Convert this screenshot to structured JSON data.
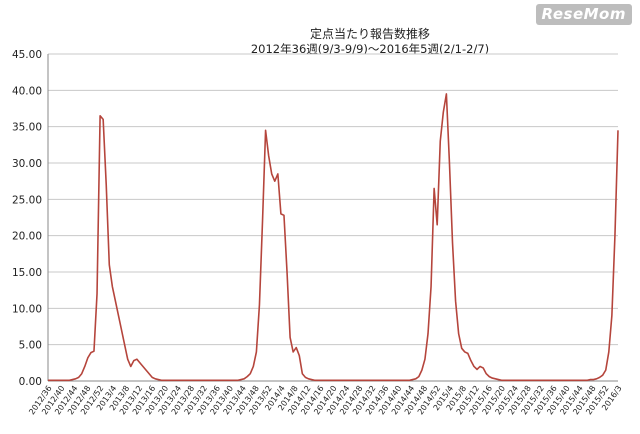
{
  "brand": {
    "watermark": "ReseMom"
  },
  "chart_data": {
    "type": "line",
    "title": "定点当たり報告数推移",
    "subtitle": "2012年36週(9/3-9/9)～2016年5週(2/1-2/7)",
    "xlabel": "",
    "ylabel": "",
    "ylim": [
      0,
      45
    ],
    "yticks": [
      "0.00",
      "5.00",
      "10.00",
      "15.00",
      "20.00",
      "25.00",
      "30.00",
      "35.00",
      "40.00",
      "45.00"
    ],
    "grid": true,
    "line_color": "#b5453c",
    "series": [
      {
        "values": [
          0.1,
          0.1,
          0.1,
          0.1,
          0.1,
          0.1,
          0.1,
          0.1,
          0.2,
          0.3,
          0.5,
          1.0,
          2.0,
          3.2,
          3.9,
          4.1,
          12.0,
          36.5,
          36.0,
          27.0,
          16.0,
          13.0,
          11.0,
          9.0,
          7.0,
          5.0,
          3.0,
          2.0,
          2.8,
          3.0,
          2.5,
          2.0,
          1.5,
          1.0,
          0.5,
          0.3,
          0.2,
          0.1,
          0.1,
          0.1,
          0.1,
          0.1,
          0.1,
          0.1,
          0.1,
          0.1,
          0.1,
          0.1,
          0.1,
          0.1,
          0.1,
          0.1,
          0.1,
          0.1,
          0.1,
          0.1,
          0.1,
          0.1,
          0.1,
          0.1,
          0.1,
          0.1,
          0.1,
          0.2,
          0.3,
          0.6,
          1.0,
          2.0,
          4.0,
          10.5,
          22.0,
          34.5,
          31.0,
          28.5,
          27.5,
          28.5,
          23.0,
          22.8,
          15.0,
          6.0,
          4.0,
          4.6,
          3.5,
          1.0,
          0.5,
          0.3,
          0.2,
          0.1,
          0.1,
          0.1,
          0.1,
          0.1,
          0.1,
          0.1,
          0.1,
          0.1,
          0.1,
          0.1,
          0.1,
          0.1,
          0.1,
          0.1,
          0.1,
          0.1,
          0.1,
          0.1,
          0.1,
          0.1,
          0.1,
          0.1,
          0.1,
          0.1,
          0.1,
          0.1,
          0.1,
          0.1,
          0.1,
          0.1,
          0.1,
          0.2,
          0.3,
          0.6,
          1.5,
          3.0,
          6.5,
          13.0,
          26.5,
          21.5,
          33.0,
          37.0,
          39.5,
          30.0,
          19.0,
          11.0,
          6.5,
          4.5,
          4.0,
          3.8,
          2.8,
          2.0,
          1.6,
          2.0,
          1.8,
          1.0,
          0.6,
          0.4,
          0.3,
          0.2,
          0.1,
          0.1,
          0.1,
          0.1,
          0.1,
          0.1,
          0.1,
          0.1,
          0.1,
          0.1,
          0.1,
          0.1,
          0.1,
          0.1,
          0.1,
          0.1,
          0.1,
          0.1,
          0.1,
          0.1,
          0.1,
          0.1,
          0.1,
          0.1,
          0.1,
          0.1,
          0.1,
          0.1,
          0.1,
          0.2,
          0.2,
          0.3,
          0.5,
          0.8,
          1.5,
          4.0,
          9.0,
          20.0,
          34.5
        ]
      }
    ],
    "x_tick_labels": [
      "2012/36",
      "2012/40",
      "2012/44",
      "2012/48",
      "2012/52",
      "2013/4",
      "2013/8",
      "2013/12",
      "2013/16",
      "2013/20",
      "2013/24",
      "2013/28",
      "2013/32",
      "2013/36",
      "2013/40",
      "2013/44",
      "2013/48",
      "2013/52",
      "2014/4",
      "2014/8",
      "2014/12",
      "2014/16",
      "2014/20",
      "2014/24",
      "2014/28",
      "2014/32",
      "2014/36",
      "2014/40",
      "2014/44",
      "2014/48",
      "2014/52",
      "2015/4",
      "2015/8",
      "2015/12",
      "2015/16",
      "2015/20",
      "2015/24",
      "2015/28",
      "2015/32",
      "2015/36",
      "2015/40",
      "2015/44",
      "2015/48",
      "2015/52",
      "2016/3"
    ]
  }
}
